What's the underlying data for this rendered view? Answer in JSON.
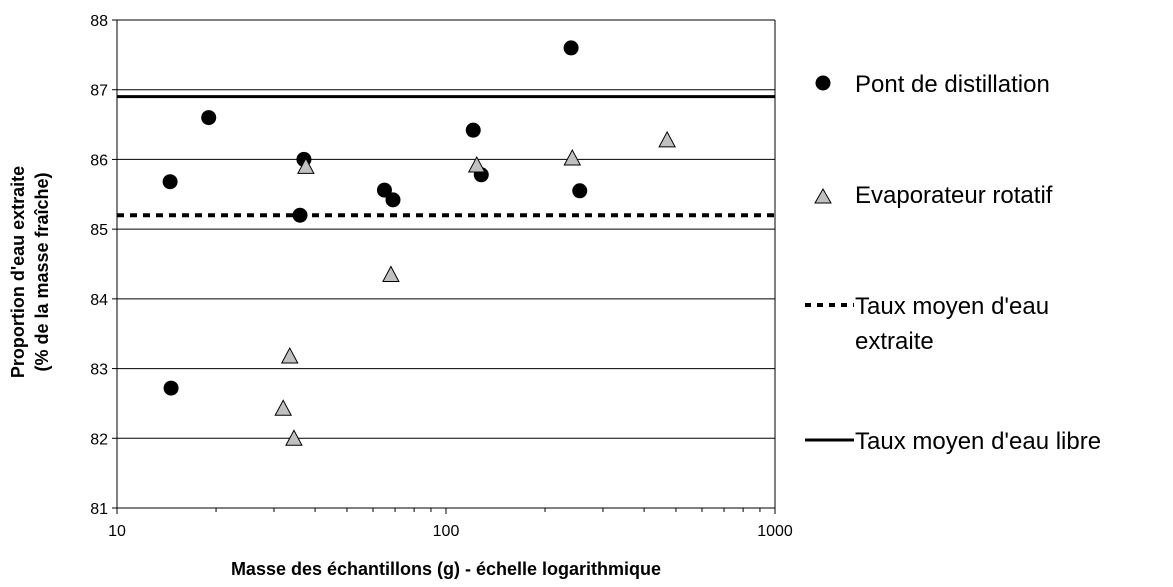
{
  "chart_data": {
    "type": "scatter",
    "xscale": "log",
    "xlim": [
      10,
      1000
    ],
    "ylim": [
      81,
      88
    ],
    "xticks": [
      10,
      100,
      1000
    ],
    "xtick_labels": [
      "10",
      "100",
      "1000"
    ],
    "yticks": [
      81,
      82,
      83,
      84,
      85,
      86,
      87,
      88
    ],
    "ytick_labels": [
      "81",
      "82",
      "83",
      "84",
      "85",
      "86",
      "87",
      "88"
    ],
    "grid": "horizontal major gridlines",
    "xlabel": "Masse des échantillons (g) - échelle logarithmique",
    "ylabel_line1": "Proportion d'eau extraite",
    "ylabel_line2": "(% de la masse fraîche)",
    "legend_position": "right",
    "series": [
      {
        "name": "Pont de distillation",
        "marker": "circle",
        "color": "#000000",
        "points": [
          {
            "x": 14.5,
            "y": 85.68
          },
          {
            "x": 14.6,
            "y": 82.72
          },
          {
            "x": 19,
            "y": 86.6
          },
          {
            "x": 37,
            "y": 86.0
          },
          {
            "x": 36,
            "y": 85.2
          },
          {
            "x": 65,
            "y": 85.56
          },
          {
            "x": 69,
            "y": 85.42
          },
          {
            "x": 121,
            "y": 86.42
          },
          {
            "x": 128,
            "y": 85.78
          },
          {
            "x": 240,
            "y": 87.6
          },
          {
            "x": 255,
            "y": 85.55
          }
        ]
      },
      {
        "name": "Evaporateur rotatif",
        "marker": "triangle",
        "color": "#c0c0c0",
        "points": [
          {
            "x": 37.5,
            "y": 85.9
          },
          {
            "x": 33.5,
            "y": 83.18
          },
          {
            "x": 32,
            "y": 82.43
          },
          {
            "x": 34.5,
            "y": 82.0
          },
          {
            "x": 68,
            "y": 84.35
          },
          {
            "x": 124,
            "y": 85.92
          },
          {
            "x": 242,
            "y": 86.02
          },
          {
            "x": 470,
            "y": 86.28
          }
        ]
      },
      {
        "name_line1": "Taux moyen d'eau",
        "name_line2": "extraite",
        "marker": "dashed-line",
        "color": "#000000",
        "y": 85.2
      },
      {
        "name": "Taux moyen d'eau libre",
        "marker": "solid-line",
        "color": "#000000",
        "y": 86.9
      }
    ]
  }
}
